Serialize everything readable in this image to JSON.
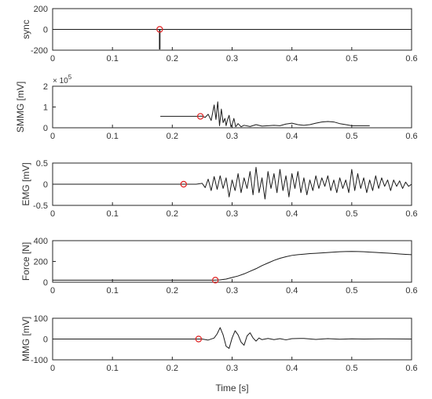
{
  "chart_data": [
    {
      "type": "line",
      "ylabel": "sync",
      "xlabel": "",
      "xlim": [
        0,
        0.6
      ],
      "ylim": [
        -200,
        200
      ],
      "xticks": [
        "0",
        "0.1",
        "0.2",
        "0.3",
        "0.4",
        "0.5",
        "0.6"
      ],
      "yticks": [
        "-200",
        "0",
        "200"
      ],
      "exponent": "",
      "series": [
        {
          "x": [
            0,
            0.1785,
            0.1785,
            0.1795,
            0.1795,
            0.18,
            0.6
          ],
          "y": [
            0,
            0,
            -190,
            -190,
            0,
            0,
            0
          ]
        }
      ],
      "marker": {
        "x": 0.179,
        "y": 0
      }
    },
    {
      "type": "line",
      "ylabel": "SMMG [mV]",
      "xlabel": "",
      "xlim": [
        0,
        0.6
      ],
      "ylim": [
        0,
        2
      ],
      "xticks": [
        "0",
        "0.1",
        "0.2",
        "0.3",
        "0.4",
        "0.5",
        "0.6"
      ],
      "yticks": [
        "0",
        "1",
        "2"
      ],
      "exponent": "× 10",
      "exponent_power": "5",
      "series": [
        {
          "x": [
            0.18,
            0.2,
            0.22,
            0.24,
            0.25,
            0.255,
            0.26,
            0.265,
            0.27,
            0.273,
            0.276,
            0.279,
            0.282,
            0.285,
            0.288,
            0.29,
            0.292,
            0.295,
            0.298,
            0.3,
            0.303,
            0.306,
            0.31,
            0.315,
            0.32,
            0.33,
            0.34,
            0.35,
            0.36,
            0.37,
            0.38,
            0.39,
            0.4,
            0.41,
            0.42,
            0.43,
            0.44,
            0.45,
            0.46,
            0.47,
            0.48,
            0.49,
            0.5,
            0.51,
            0.52,
            0.53
          ],
          "y": [
            0.55,
            0.55,
            0.55,
            0.55,
            0.56,
            0.5,
            0.65,
            0.35,
            1.1,
            0.4,
            1.25,
            0.1,
            0.9,
            0.25,
            0.45,
            0.1,
            0.35,
            0.6,
            0.05,
            0.15,
            0.45,
            0.05,
            0.2,
            0.05,
            0.12,
            0.06,
            0.15,
            0.08,
            0.1,
            0.12,
            0.1,
            0.18,
            0.22,
            0.15,
            0.12,
            0.15,
            0.22,
            0.28,
            0.3,
            0.28,
            0.2,
            0.15,
            0.1,
            0.1,
            0.1,
            0.1
          ]
        }
      ],
      "marker": {
        "x": 0.247,
        "y": 0.55
      }
    },
    {
      "type": "line",
      "ylabel": "EMG [mV]",
      "xlabel": "",
      "xlim": [
        0,
        0.6
      ],
      "ylim": [
        -0.5,
        0.5
      ],
      "xticks": [
        "0",
        "0.1",
        "0.2",
        "0.3",
        "0.4",
        "0.5",
        "0.6"
      ],
      "yticks": [
        "-0.5",
        "0",
        "0.5"
      ],
      "exponent": "",
      "series": [
        {
          "x": [
            0,
            0.05,
            0.1,
            0.15,
            0.2,
            0.22,
            0.24,
            0.25,
            0.255,
            0.26,
            0.265,
            0.27,
            0.275,
            0.28,
            0.285,
            0.29,
            0.295,
            0.3,
            0.305,
            0.31,
            0.315,
            0.32,
            0.325,
            0.33,
            0.335,
            0.34,
            0.345,
            0.35,
            0.355,
            0.36,
            0.365,
            0.37,
            0.375,
            0.38,
            0.385,
            0.39,
            0.395,
            0.4,
            0.405,
            0.41,
            0.415,
            0.42,
            0.425,
            0.43,
            0.435,
            0.44,
            0.445,
            0.45,
            0.455,
            0.46,
            0.465,
            0.47,
            0.475,
            0.48,
            0.485,
            0.49,
            0.495,
            0.5,
            0.505,
            0.51,
            0.515,
            0.52,
            0.525,
            0.53,
            0.535,
            0.54,
            0.545,
            0.55,
            0.555,
            0.56,
            0.565,
            0.57,
            0.575,
            0.58,
            0.585,
            0.59,
            0.595,
            0.6
          ],
          "y": [
            0,
            0,
            0,
            0,
            0,
            0,
            0,
            0.02,
            -0.08,
            0.12,
            -0.15,
            0.18,
            -0.12,
            0.2,
            -0.1,
            0.15,
            -0.3,
            0.1,
            -0.15,
            0.25,
            -0.2,
            0.15,
            -0.1,
            0.3,
            -0.25,
            0.4,
            -0.2,
            0.15,
            -0.35,
            0.3,
            -0.1,
            0.25,
            -0.2,
            0.35,
            -0.15,
            0.2,
            -0.3,
            0.25,
            -0.1,
            0.3,
            -0.2,
            0.15,
            -0.25,
            0.1,
            -0.15,
            0.2,
            -0.1,
            0.15,
            -0.05,
            0.2,
            -0.15,
            0.1,
            -0.2,
            0.15,
            -0.1,
            0.1,
            -0.2,
            0.35,
            -0.15,
            0.25,
            -0.1,
            0.15,
            -0.2,
            0.1,
            -0.15,
            0.2,
            -0.1,
            0.15,
            -0.05,
            0.1,
            -0.15,
            0.1,
            -0.05,
            0.08,
            -0.1,
            0.05,
            -0.05,
            0
          ]
        }
      ],
      "marker": {
        "x": 0.219,
        "y": 0
      }
    },
    {
      "type": "line",
      "ylabel": "Force [N]",
      "xlabel": "",
      "xlim": [
        0,
        0.6
      ],
      "ylim": [
        0,
        400
      ],
      "xticks": [
        "0",
        "0.1",
        "0.2",
        "0.3",
        "0.4",
        "0.5",
        "0.6"
      ],
      "yticks": [
        "0",
        "200",
        "400"
      ],
      "exponent": "",
      "series": [
        {
          "x": [
            0,
            0.05,
            0.1,
            0.15,
            0.2,
            0.25,
            0.27,
            0.28,
            0.29,
            0.3,
            0.31,
            0.32,
            0.33,
            0.34,
            0.35,
            0.36,
            0.37,
            0.38,
            0.39,
            0.4,
            0.41,
            0.42,
            0.43,
            0.44,
            0.45,
            0.46,
            0.47,
            0.48,
            0.49,
            0.5,
            0.51,
            0.52,
            0.53,
            0.54,
            0.55,
            0.56,
            0.57,
            0.58,
            0.59,
            0.6
          ],
          "y": [
            20,
            20,
            20,
            20,
            20,
            20,
            20,
            23,
            30,
            45,
            60,
            80,
            105,
            130,
            160,
            185,
            210,
            230,
            245,
            258,
            265,
            270,
            275,
            278,
            282,
            286,
            290,
            293,
            295,
            296,
            295,
            293,
            290,
            287,
            283,
            280,
            276,
            272,
            268,
            265
          ]
        }
      ],
      "marker": {
        "x": 0.272,
        "y": 20
      }
    },
    {
      "type": "line",
      "ylabel": "MMG [mV]",
      "xlabel": "Time [s]",
      "xlim": [
        0,
        0.6
      ],
      "ylim": [
        -100,
        100
      ],
      "xticks": [
        "0",
        "0.1",
        "0.2",
        "0.3",
        "0.4",
        "0.5",
        "0.6"
      ],
      "yticks": [
        "-100",
        "0",
        "100"
      ],
      "exponent": "",
      "series": [
        {
          "x": [
            0,
            0.05,
            0.1,
            0.15,
            0.2,
            0.24,
            0.25,
            0.26,
            0.27,
            0.275,
            0.28,
            0.285,
            0.29,
            0.295,
            0.3,
            0.305,
            0.31,
            0.315,
            0.32,
            0.325,
            0.33,
            0.335,
            0.34,
            0.345,
            0.35,
            0.36,
            0.37,
            0.38,
            0.39,
            0.4,
            0.42,
            0.44,
            0.46,
            0.48,
            0.5,
            0.52,
            0.55,
            0.6
          ],
          "y": [
            0,
            0,
            0,
            0,
            0,
            0,
            0,
            -5,
            5,
            25,
            55,
            20,
            -35,
            -45,
            5,
            40,
            20,
            -15,
            -30,
            15,
            30,
            5,
            -10,
            5,
            -3,
            3,
            -3,
            2,
            -4,
            2,
            3,
            -2,
            2,
            -1,
            1,
            0,
            1,
            0
          ]
        }
      ],
      "marker": {
        "x": 0.244,
        "y": 0
      }
    }
  ]
}
